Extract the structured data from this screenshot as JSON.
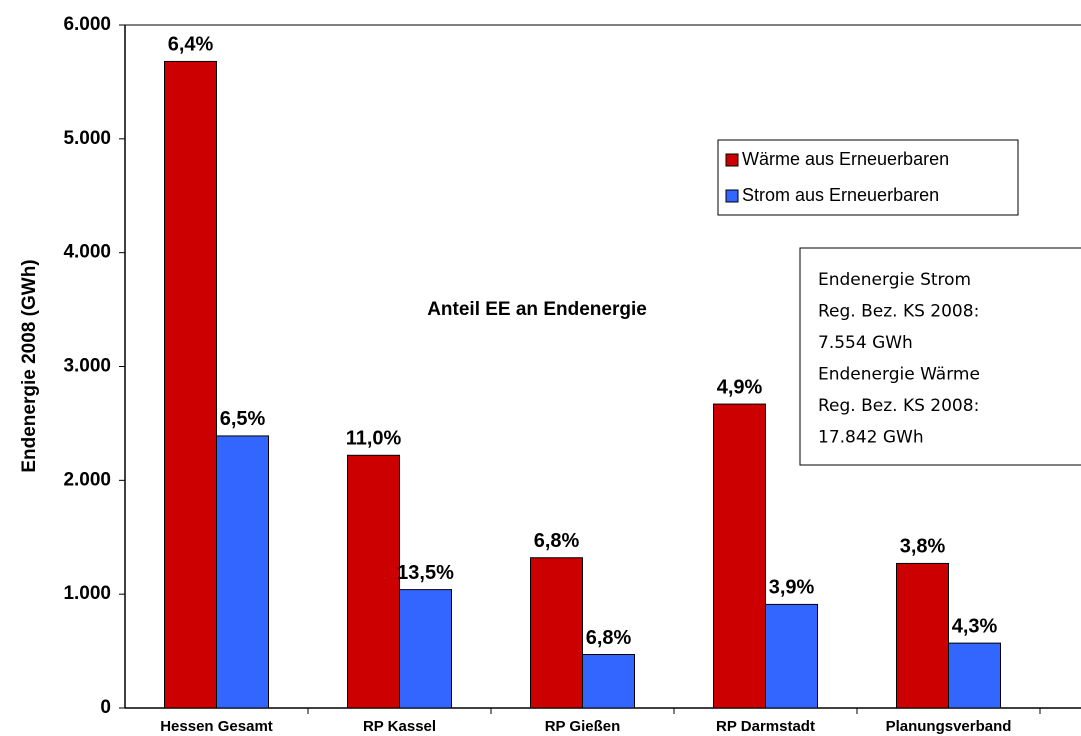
{
  "chart_data": {
    "type": "bar",
    "ylabel": "Endenergie 2008 (GWh)",
    "annotation": "Anteil EE an Endenergie",
    "info_box": [
      "Endenergie Strom",
      "Reg. Bez. KS 2008:",
      "7.554 GWh",
      "Endenergie Wärme",
      "Reg. Bez. KS 2008:",
      "17.842 GWh"
    ],
    "categories": [
      "Hessen Gesamt",
      "RP Kassel",
      "RP Gießen",
      "RP Darmstadt",
      "Planungsverband"
    ],
    "series": [
      {
        "name": "Wärme aus Erneuerbaren",
        "color": "#cc0000",
        "values": [
          5680,
          2220,
          1320,
          2670,
          1270
        ],
        "percent_labels": [
          "6,4%",
          "11,0%",
          "6,8%",
          "4,9%",
          "3,8%"
        ]
      },
      {
        "name": "Strom aus Erneuerbaren",
        "color": "#3366ff",
        "values": [
          2390,
          1040,
          470,
          910,
          570
        ],
        "percent_labels": [
          "6,5%",
          "13,5%",
          "6,8%",
          "3,9%",
          "4,3%"
        ]
      }
    ],
    "ylim": [
      0,
      6000
    ],
    "yticks": [
      0,
      {
        "value": 1000,
        "label": "1.000"
      },
      {
        "value": 2000,
        "label": "2.000"
      },
      {
        "value": 3000,
        "label": "3.000"
      },
      {
        "value": 4000,
        "label": "4.000"
      },
      {
        "value": 5000,
        "label": "5.000"
      },
      {
        "value": 6000,
        "label": "6.000"
      }
    ],
    "legend": "upper right"
  }
}
